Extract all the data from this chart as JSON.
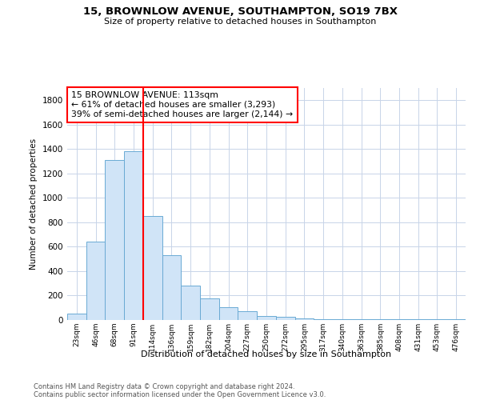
{
  "title1": "15, BROWNLOW AVENUE, SOUTHAMPTON, SO19 7BX",
  "title2": "Size of property relative to detached houses in Southampton",
  "xlabel": "Distribution of detached houses by size in Southampton",
  "ylabel": "Number of detached properties",
  "categories": [
    "23sqm",
    "46sqm",
    "68sqm",
    "91sqm",
    "114sqm",
    "136sqm",
    "159sqm",
    "182sqm",
    "204sqm",
    "227sqm",
    "250sqm",
    "272sqm",
    "295sqm",
    "317sqm",
    "340sqm",
    "363sqm",
    "385sqm",
    "408sqm",
    "431sqm",
    "453sqm",
    "476sqm"
  ],
  "values": [
    55,
    640,
    1310,
    1380,
    850,
    530,
    280,
    180,
    105,
    70,
    30,
    25,
    15,
    5,
    5,
    5,
    5,
    5,
    5,
    5,
    5
  ],
  "bar_color": "#d0e4f7",
  "bar_edge_color": "#6aaad4",
  "red_line_index": 4,
  "annotation_line1": "15 BROWNLOW AVENUE: 113sqm",
  "annotation_line2": "← 61% of detached houses are smaller (3,293)",
  "annotation_line3": "39% of semi-detached houses are larger (2,144) →",
  "ylim": [
    0,
    1900
  ],
  "yticks": [
    0,
    200,
    400,
    600,
    800,
    1000,
    1200,
    1400,
    1600,
    1800
  ],
  "grid_color": "#c8d4e8",
  "footnote1": "Contains HM Land Registry data © Crown copyright and database right 2024.",
  "footnote2": "Contains public sector information licensed under the Open Government Licence v3.0."
}
